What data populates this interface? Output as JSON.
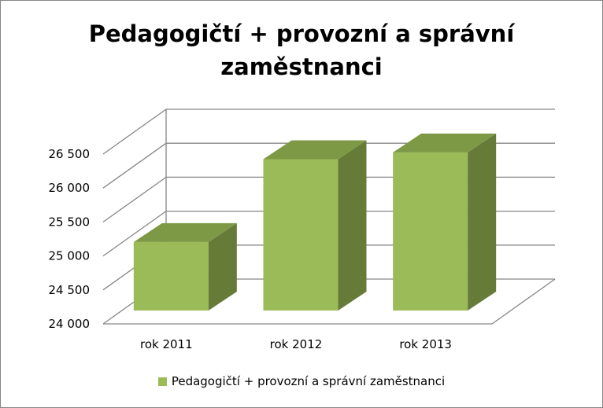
{
  "chart_data": {
    "type": "bar",
    "title_lines": [
      "Pedagogičtí + provozní a správní",
      "zaměstnanci"
    ],
    "categories": [
      "rok 2011",
      "rok 2012",
      "rok 2013"
    ],
    "series": [
      {
        "name": "Pedagogičtí + provozní a správní zaměstnanci",
        "values": [
          24950,
          26170,
          26270
        ],
        "color": "#9bbb59"
      }
    ],
    "yticks": [
      "24 000",
      "24 500",
      "25 000",
      "25 500",
      "26 000",
      "26 500"
    ],
    "ylim": [
      24000,
      26500
    ],
    "ytick_step": 500,
    "grid": true,
    "three_d": true,
    "legend_position": "bottom",
    "colors": {
      "bar_front": "#9bbb59",
      "bar_side": "#677b39",
      "bar_top": "#7d9945",
      "gridline": "#868686"
    }
  }
}
